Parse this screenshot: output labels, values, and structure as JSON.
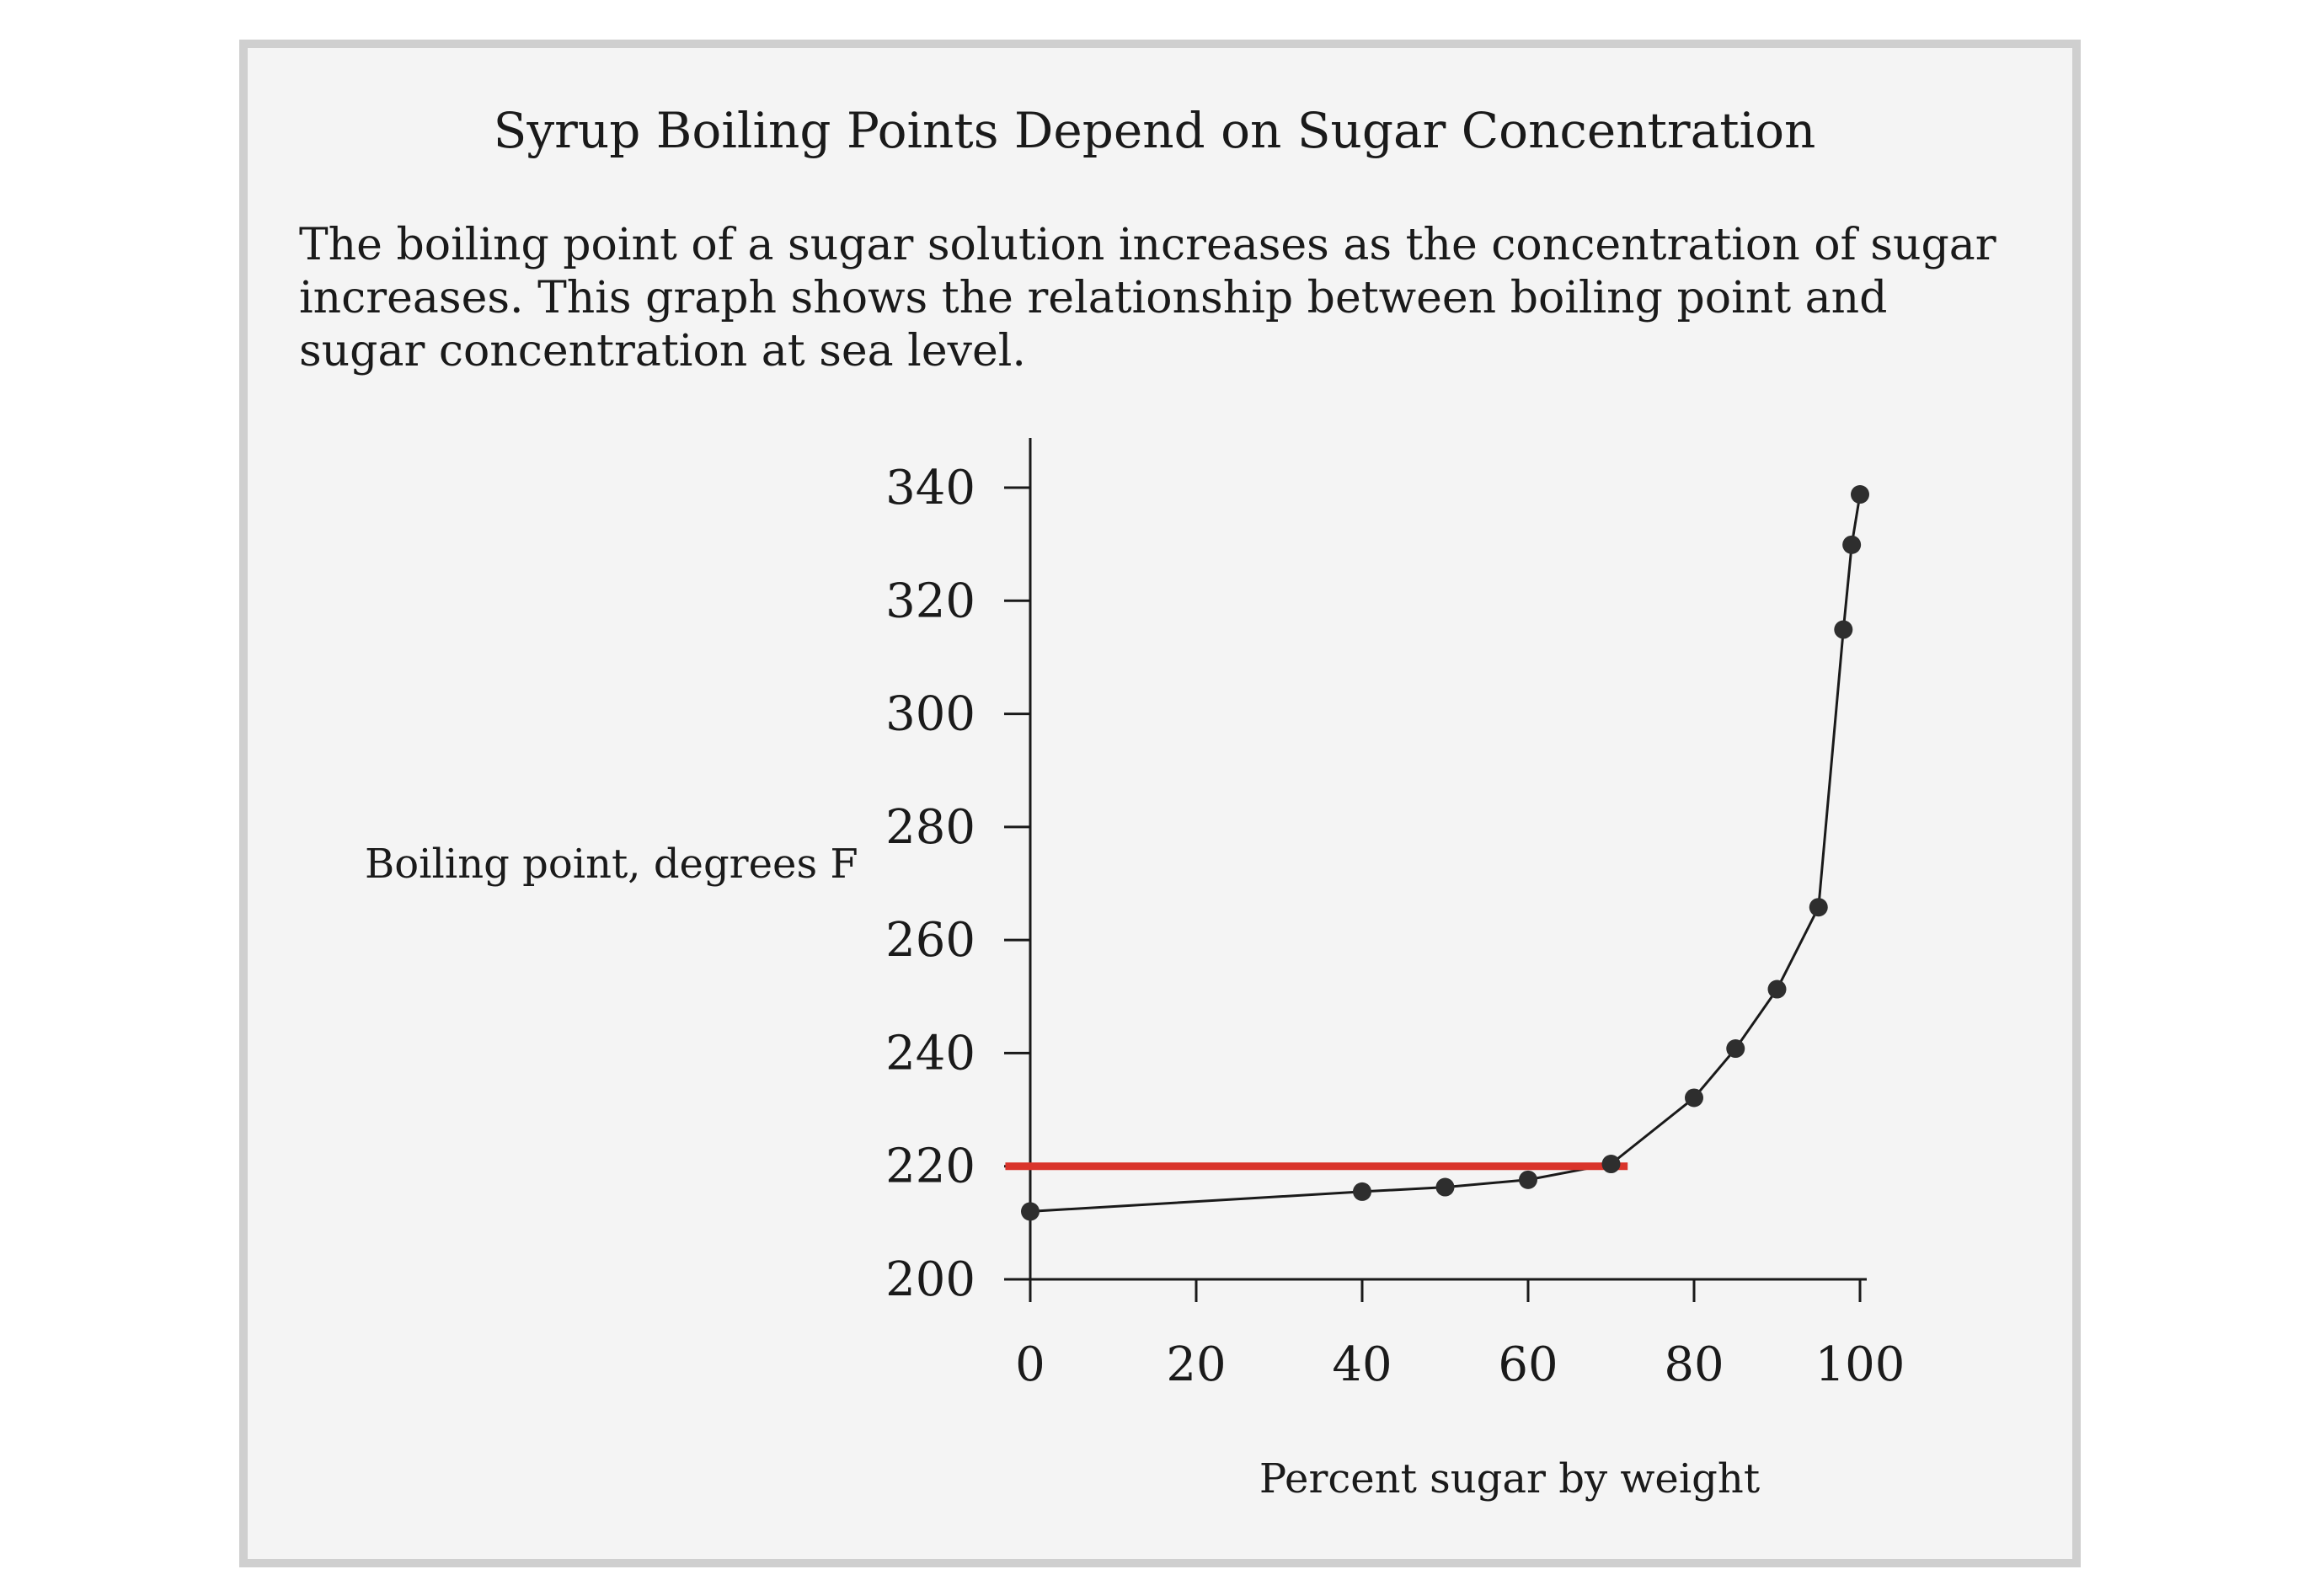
{
  "chart_data": {
    "type": "line",
    "title": "Syrup Boiling Points Depend on Sugar Concentration",
    "description": "The boiling point of a sugar solution increases as the concentration of sugar increases. This graph shows the relationship between boiling point and sugar concentration at sea level.",
    "xlabel": "Percent sugar by weight",
    "ylabel": "Boiling point, degrees F",
    "xlim": [
      0,
      100
    ],
    "ylim": [
      200,
      340
    ],
    "x_ticks": [
      0,
      20,
      40,
      60,
      80,
      100
    ],
    "y_ticks": [
      200,
      220,
      240,
      260,
      280,
      300,
      320,
      340
    ],
    "grid": false,
    "colors": {
      "line": "#1a1a1a",
      "markers": "#2e2e2e",
      "reference_line": "#d9342b"
    },
    "series": [
      {
        "x": [
          0,
          40,
          50,
          60,
          70,
          80,
          85,
          90,
          95,
          98,
          99,
          100
        ],
        "y": [
          212,
          215.5,
          216.3,
          217.6,
          220.4,
          232.1,
          240.8,
          251.3,
          265.8,
          314.9,
          329.9,
          338.8
        ]
      }
    ],
    "reference_line": {
      "y": 220,
      "x_start": -3,
      "x_end": 72
    }
  }
}
